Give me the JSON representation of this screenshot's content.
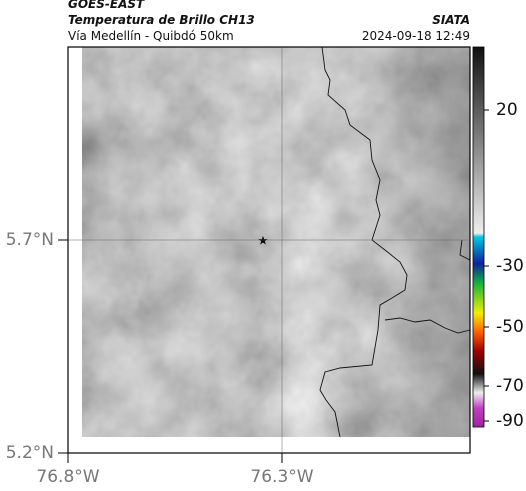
{
  "header": {
    "satellite": "GOES-EAST",
    "product": "Temperatura de Brillo CH13",
    "route": "Vía Medellín - Quibdó 50km",
    "source": "SIATA",
    "timestamp": "2024-09-18 12:49"
  },
  "map": {
    "lat_ticks": [
      {
        "value": 5.7,
        "label": "5.7°N"
      },
      {
        "value": 5.2,
        "label": "5.2°N"
      }
    ],
    "lon_ticks": [
      {
        "value": -76.8,
        "label": "76.8°W"
      },
      {
        "value": -76.3,
        "label": "76.3°W"
      }
    ]
  },
  "colorbar": {
    "ticks": [
      20,
      -30,
      -50,
      -70,
      -90
    ]
  }
}
